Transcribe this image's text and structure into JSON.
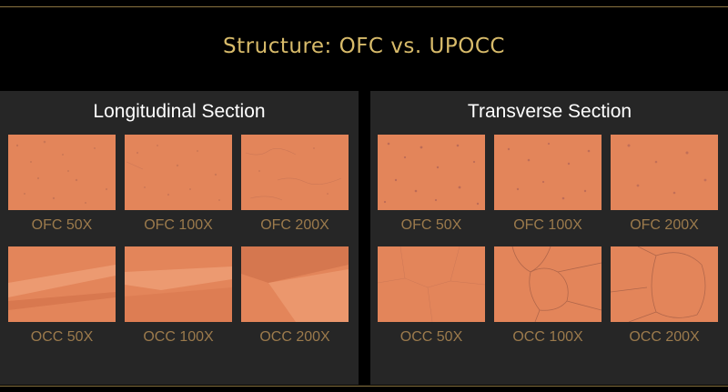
{
  "title": "Structure: OFC vs. UPOCC",
  "panels": [
    {
      "heading": "Longitudinal Section",
      "rows": [
        [
          {
            "caption": "OFC 50X",
            "image": "ofc-longitudinal-50x"
          },
          {
            "caption": "OFC 100X",
            "image": "ofc-longitudinal-100x"
          },
          {
            "caption": "OFC 200X",
            "image": "ofc-longitudinal-200x"
          }
        ],
        [
          {
            "caption": "OCC 50X",
            "image": "occ-longitudinal-50x"
          },
          {
            "caption": "OCC 100X",
            "image": "occ-longitudinal-100x"
          },
          {
            "caption": "OCC 200X",
            "image": "occ-longitudinal-200x"
          }
        ]
      ]
    },
    {
      "heading": "Transverse Section",
      "rows": [
        [
          {
            "caption": "OFC 50X",
            "image": "ofc-transverse-50x"
          },
          {
            "caption": "OFC 100X",
            "image": "ofc-transverse-100x"
          },
          {
            "caption": "OFC 200X",
            "image": "ofc-transverse-200x"
          }
        ],
        [
          {
            "caption": "OCC 50X",
            "image": "occ-transverse-50x"
          },
          {
            "caption": "OCC 100X",
            "image": "occ-transverse-100x"
          },
          {
            "caption": "OCC 200X",
            "image": "occ-transverse-200x"
          }
        ]
      ]
    }
  ],
  "colors": {
    "background": "#000000",
    "panel": "#262626",
    "title": "#d8bb6a",
    "caption": "#9b7a4c",
    "copper": "#e3855a"
  }
}
